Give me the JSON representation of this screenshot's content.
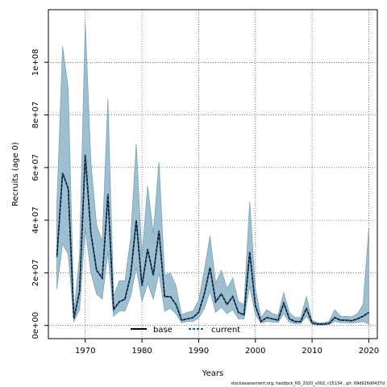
{
  "chart_data": {
    "type": "area",
    "xlabel": "Years",
    "ylabel": "Recruits (age 0)",
    "xlim": [
      1963.5,
      2021.5
    ],
    "ylim": [
      -5000000,
      120000000
    ],
    "x_ticks": [
      1970,
      1980,
      1990,
      2000,
      2010,
      2020
    ],
    "x_tick_labels": [
      "1970",
      "1980",
      "1990",
      "2000",
      "2010",
      "2020"
    ],
    "y_ticks": [
      0,
      20000000,
      40000000,
      60000000,
      80000000,
      100000000
    ],
    "y_tick_labels": [
      "0e+00",
      "2e+07",
      "4e+07",
      "6e+07",
      "8e+07",
      "1e+08"
    ],
    "grid": true,
    "legend_position": "bottom-center",
    "footnote": "stockassessment.org,  haddock_NS_2020_v002,  r15134 ,  git: 69d926d0437d",
    "years": [
      1965,
      1966,
      1967,
      1968,
      1969,
      1970,
      1971,
      1972,
      1973,
      1974,
      1975,
      1976,
      1977,
      1978,
      1979,
      1980,
      1981,
      1982,
      1983,
      1984,
      1985,
      1986,
      1987,
      1988,
      1989,
      1990,
      1991,
      1992,
      1993,
      1994,
      1995,
      1996,
      1997,
      1998,
      1999,
      2000,
      2001,
      2002,
      2003,
      2004,
      2005,
      2006,
      2007,
      2008,
      2009,
      2010,
      2011,
      2012,
      2013,
      2014,
      2015,
      2016,
      2017,
      2018,
      2019,
      2020
    ],
    "series": [
      {
        "name": "base",
        "style": "solid",
        "color": "#000000",
        "values": [
          26000000,
          58000000,
          52000000,
          2500000,
          13000000,
          65000000,
          35000000,
          21000000,
          18000000,
          50000000,
          6000000,
          9000000,
          10000000,
          19000000,
          40000000,
          15000000,
          29000000,
          19000000,
          36000000,
          11000000,
          11000000,
          8000000,
          2000000,
          2500000,
          3000000,
          5000000,
          12000000,
          22000000,
          9000000,
          12000000,
          8000000,
          11000000,
          5000000,
          4000000,
          28000000,
          7500000,
          1500000,
          3000000,
          2500000,
          2000000,
          8500000,
          2500000,
          1500000,
          1500000,
          6500000,
          1000000,
          500000,
          500000,
          800000,
          3000000,
          2000000,
          2000000,
          1800000,
          2500000,
          3500000,
          5000000
        ]
      },
      {
        "name": "current",
        "style": "dashed",
        "color": "#1f5f9a",
        "values": [
          26000000,
          58000000,
          52000000,
          2500000,
          13000000,
          65000000,
          35000000,
          21000000,
          18000000,
          50000000,
          6000000,
          9000000,
          10000000,
          19000000,
          40000000,
          15000000,
          29000000,
          19000000,
          36000000,
          11000000,
          11000000,
          8000000,
          2000000,
          2500000,
          3000000,
          5000000,
          12000000,
          22000000,
          9000000,
          12000000,
          8000000,
          11000000,
          5000000,
          4000000,
          28000000,
          7500000,
          1500000,
          3000000,
          2500000,
          2000000,
          8500000,
          2500000,
          1500000,
          1500000,
          6500000,
          1000000,
          500000,
          500000,
          800000,
          3000000,
          2000000,
          2000000,
          1800000,
          2500000,
          3500000,
          5000000
        ]
      }
    ],
    "confidence_band": {
      "color": "#9dbfd0",
      "lower": [
        14000000,
        31000000,
        27000000,
        1500000,
        6000000,
        37000000,
        20000000,
        12000000,
        10000000,
        28000000,
        3500000,
        5500000,
        5500000,
        11000000,
        22000000,
        9000000,
        16000000,
        10000000,
        20000000,
        5500000,
        6500000,
        4500000,
        1000000,
        1500000,
        1500000,
        2800000,
        6500000,
        13000000,
        5000000,
        7000000,
        4500000,
        6000000,
        2500000,
        2500000,
        15000000,
        4000000,
        800000,
        1600000,
        1300000,
        1100000,
        4500000,
        1200000,
        700000,
        700000,
        3500000,
        400000,
        200000,
        200000,
        400000,
        1500000,
        1100000,
        1100000,
        900000,
        1200000,
        1500000,
        600000
      ],
      "upper": [
        46000000,
        106000000,
        90000000,
        4500000,
        27000000,
        115000000,
        62000000,
        38000000,
        32000000,
        86000000,
        11000000,
        17000000,
        17000000,
        33000000,
        69000000,
        26000000,
        53000000,
        35000000,
        62000000,
        19000000,
        20000000,
        15000000,
        4000000,
        5000000,
        5500000,
        9500000,
        21000000,
        34000000,
        16000000,
        21000000,
        14000000,
        18000000,
        9000000,
        8000000,
        47000000,
        14000000,
        3000000,
        6000000,
        4500000,
        4000000,
        12500000,
        4800000,
        3000000,
        3000000,
        11000000,
        2000000,
        1000000,
        1000000,
        1600000,
        6000000,
        3500000,
        3500000,
        3300000,
        4500000,
        8000000,
        37000000
      ]
    }
  }
}
